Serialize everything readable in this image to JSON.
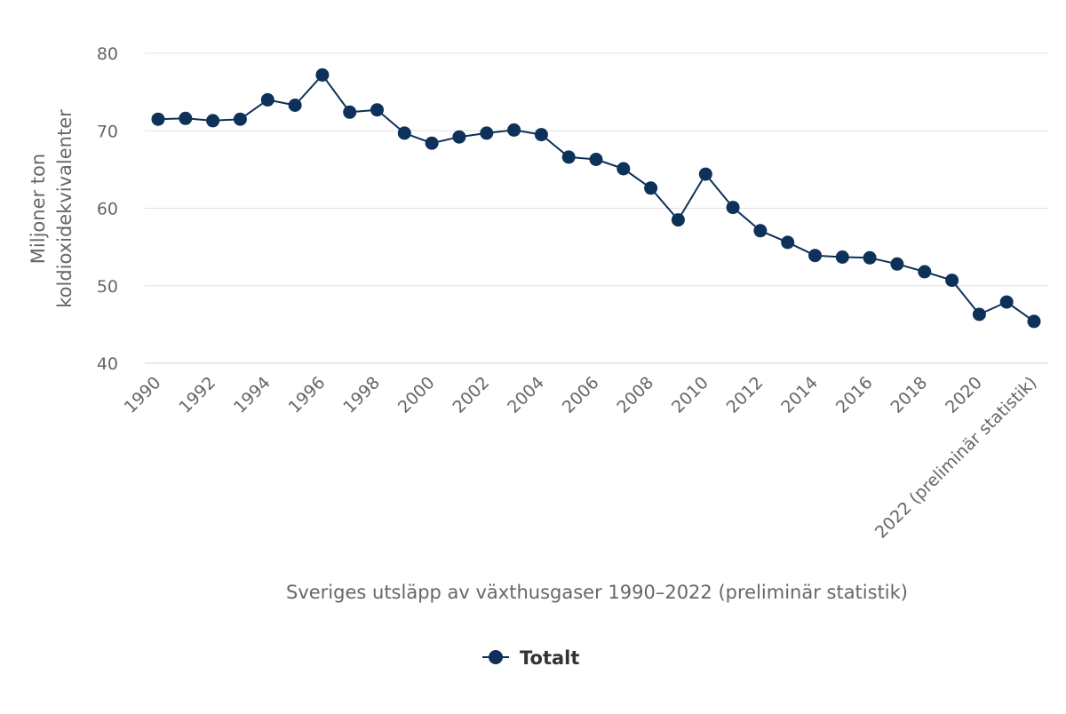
{
  "chart_data": {
    "type": "line",
    "title": "",
    "xlabel": "Sveriges utsläpp av växthusgaser 1990–2022 (preliminär statistik)",
    "ylabel_lines": [
      "Miljoner ton",
      "koldioxidekvivalenter"
    ],
    "ylim": [
      40,
      80
    ],
    "yticks": [
      40,
      50,
      60,
      70,
      80
    ],
    "grid": true,
    "legend": "bottom-center",
    "x": [
      1990,
      1991,
      1992,
      1993,
      1994,
      1995,
      1996,
      1997,
      1998,
      1999,
      2000,
      2001,
      2002,
      2003,
      2004,
      2005,
      2006,
      2007,
      2008,
      2009,
      2010,
      2011,
      2012,
      2013,
      2014,
      2015,
      2016,
      2017,
      2018,
      2019,
      2020,
      2021,
      2022
    ],
    "x_tick_labels": [
      {
        "index": 0,
        "label": "1990"
      },
      {
        "index": 2,
        "label": "1992"
      },
      {
        "index": 4,
        "label": "1994"
      },
      {
        "index": 6,
        "label": "1996"
      },
      {
        "index": 8,
        "label": "1998"
      },
      {
        "index": 10,
        "label": "2000"
      },
      {
        "index": 12,
        "label": "2002"
      },
      {
        "index": 14,
        "label": "2004"
      },
      {
        "index": 16,
        "label": "2006"
      },
      {
        "index": 18,
        "label": "2008"
      },
      {
        "index": 20,
        "label": "2010"
      },
      {
        "index": 22,
        "label": "2012"
      },
      {
        "index": 24,
        "label": "2014"
      },
      {
        "index": 26,
        "label": "2016"
      },
      {
        "index": 28,
        "label": "2018"
      },
      {
        "index": 30,
        "label": "2020"
      },
      {
        "index": 32,
        "label": "2022 (preliminär statistik)"
      }
    ],
    "series": [
      {
        "name": "Totalt",
        "color": "#0d3158",
        "values": [
          71.5,
          71.6,
          71.3,
          71.5,
          74.0,
          73.3,
          77.2,
          72.4,
          72.7,
          69.7,
          68.4,
          69.2,
          69.7,
          70.1,
          69.5,
          66.6,
          66.3,
          65.1,
          62.6,
          58.5,
          64.4,
          60.1,
          57.1,
          55.6,
          53.9,
          53.7,
          53.6,
          52.8,
          51.8,
          50.7,
          46.3,
          47.9,
          45.4
        ]
      }
    ]
  },
  "colors": {
    "series": "#0d3158",
    "grid": "#e0e0e0",
    "axis": "#ccd6eb",
    "tick_text": "#666666",
    "title_text": "#666666",
    "legend_text": "#333333"
  }
}
